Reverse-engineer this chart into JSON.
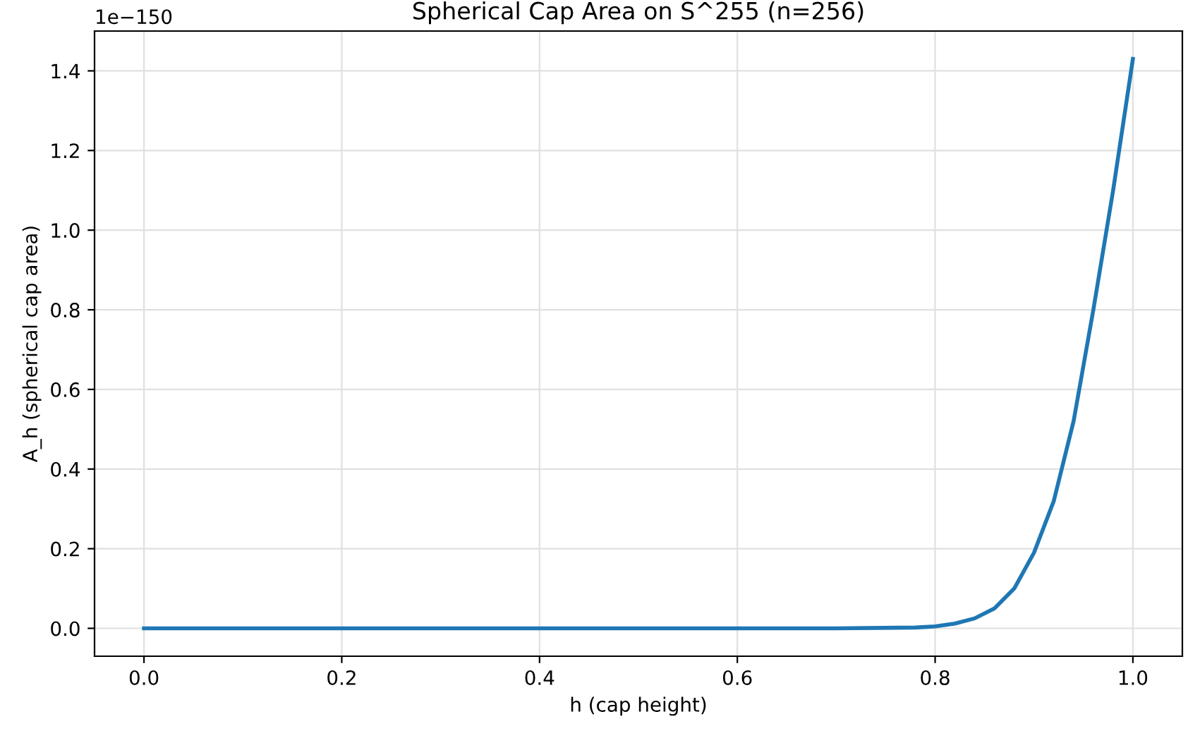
{
  "chart_data": {
    "type": "line",
    "title": "Spherical Cap Area on S^255 (n=256)",
    "xlabel": "h (cap height)",
    "ylabel": "A_h (spherical cap area)",
    "annotations": [
      "1e−150"
    ],
    "x": [
      0,
      0.2,
      0.4,
      0.6,
      0.7,
      0.78,
      0.8,
      0.82,
      0.84,
      0.86,
      0.88,
      0.9,
      0.92,
      0.94,
      0.96,
      0.98,
      1.0
    ],
    "series": [
      {
        "color": "#1f77b4",
        "values": [
          0,
          0,
          0,
          0,
          0,
          0.002,
          0.005,
          0.012,
          0.025,
          0.05,
          0.1,
          0.19,
          0.32,
          0.52,
          0.8,
          1.1,
          1.43
        ]
      }
    ],
    "xlim": [
      -0.05,
      1.05
    ],
    "ylim": [
      -0.07,
      1.5
    ],
    "xticks": [
      {
        "value": 0,
        "label": "0.0"
      },
      0.2,
      0.4,
      0.6,
      0.8,
      {
        "value": 1,
        "label": "1.0"
      }
    ],
    "yticks": [
      {
        "value": 0,
        "label": "0.0"
      },
      0.2,
      0.4,
      0.6,
      0.8,
      {
        "value": 1,
        "label": "1.0"
      },
      1.2,
      1.4
    ],
    "grid": true,
    "marker": "none",
    "line_style": "solid"
  }
}
